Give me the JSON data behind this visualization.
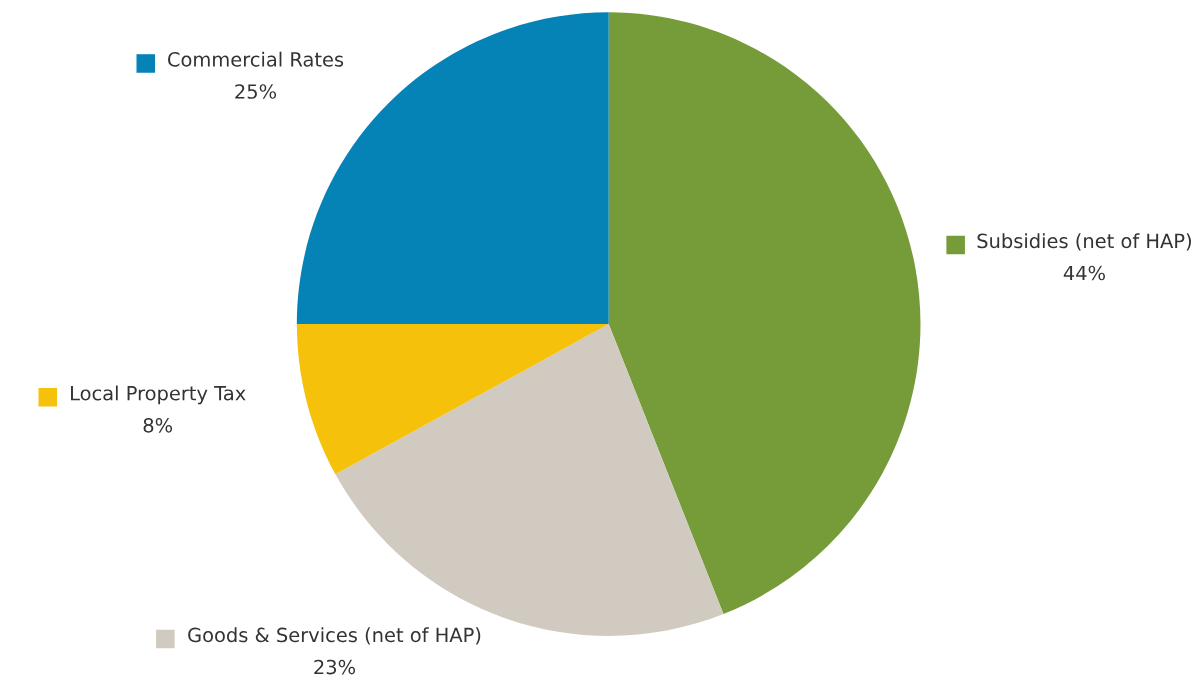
{
  "chart_data": {
    "type": "pie",
    "categories": [
      "Subsidies (net of HAP)",
      "Goods & Services (net of HAP)",
      "Local Property Tax",
      "Commercial Rates"
    ],
    "values": [
      44,
      23,
      8,
      25
    ],
    "value_labels": [
      "44%",
      "23%",
      "8%",
      "25%"
    ],
    "colors": [
      "#769c3a",
      "#d1cac0",
      "#f5c10a",
      "#0582b6"
    ],
    "legend": "left"
  }
}
